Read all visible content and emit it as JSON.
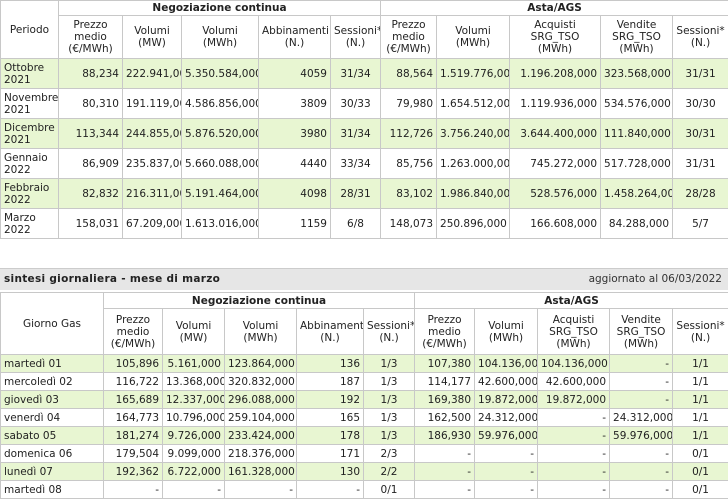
{
  "monthly": {
    "group_headers": [
      "Negoziazione continua",
      "Asta/AGS"
    ],
    "columns": [
      "Periodo",
      "Prezzo\nmedio\n(€/MWh)",
      "Volumi\n(MW)",
      "Volumi\n(MWh)",
      "Abbinamenti\n(N.)",
      "Sessioni*\n(N.)",
      "Prezzo\nmedio\n(€/MWh)",
      "Volumi\n(MWh)",
      "Acquisti\nSRG_TSO\n(MWh)",
      "Vendite\nSRG_TSO\n(MWh)",
      "Sessioni*\n(N.)"
    ],
    "rows": [
      [
        "Ottobre\n2021",
        "88,234",
        "222.941,000",
        "5.350.584,000",
        "4059",
        "31/34",
        "88,564",
        "1.519.776,000",
        "1.196.208,000",
        "323.568,000",
        "31/31"
      ],
      [
        "Novembre\n2021",
        "80,310",
        "191.119,000",
        "4.586.856,000",
        "3809",
        "30/33",
        "79,980",
        "1.654.512,000",
        "1.119.936,000",
        "534.576,000",
        "30/30"
      ],
      [
        "Dicembre\n2021",
        "113,344",
        "244.855,000",
        "5.876.520,000",
        "3980",
        "31/34",
        "112,726",
        "3.756.240,000",
        "3.644.400,000",
        "111.840,000",
        "30/31"
      ],
      [
        "Gennaio\n2022",
        "86,909",
        "235.837,000",
        "5.660.088,000",
        "4440",
        "33/34",
        "85,756",
        "1.263.000,000",
        "745.272,000",
        "517.728,000",
        "31/31"
      ],
      [
        "Febbraio\n2022",
        "82,832",
        "216.311,000",
        "5.191.464,000",
        "4098",
        "28/31",
        "83,102",
        "1.986.840,000",
        "528.576,000",
        "1.458.264,000",
        "28/28"
      ],
      [
        "Marzo\n2022",
        "158,031",
        "67.209,000",
        "1.613.016,000",
        "1159",
        "6/8",
        "148,073",
        "250.896,000",
        "166.608,000",
        "84.288,000",
        "5/7"
      ]
    ]
  },
  "section": {
    "title": "sintesi giornaliera - mese di marzo",
    "updated": "aggiornato al 06/03/2022"
  },
  "daily": {
    "group_headers": [
      "Negoziazione continua",
      "Asta/AGS"
    ],
    "columns": [
      "Giorno Gas",
      "Prezzo\nmedio\n(€/MWh)",
      "Volumi\n(MW)",
      "Volumi\n(MWh)",
      "Abbinamenti\n(N.)",
      "Sessioni*\n(N.)",
      "Prezzo\nmedio\n(€/MWh)",
      "Volumi\n(MWh)",
      "Acquisti\nSRG_TSO\n(MWh)",
      "Vendite\nSRG_TSO\n(MWh)",
      "Sessioni*\n(N.)"
    ],
    "rows": [
      [
        "martedì 01",
        "105,896",
        "5.161,000",
        "123.864,000",
        "136",
        "1/3",
        "107,380",
        "104.136,000",
        "104.136,000",
        "-",
        "1/1"
      ],
      [
        "mercoledì 02",
        "116,722",
        "13.368,000",
        "320.832,000",
        "187",
        "1/3",
        "114,177",
        "42.600,000",
        "42.600,000",
        "-",
        "1/1"
      ],
      [
        "giovedì 03",
        "165,689",
        "12.337,000",
        "296.088,000",
        "192",
        "1/3",
        "169,380",
        "19.872,000",
        "19.872,000",
        "-",
        "1/1"
      ],
      [
        "venerdì 04",
        "164,773",
        "10.796,000",
        "259.104,000",
        "165",
        "1/3",
        "162,500",
        "24.312,000",
        "-",
        "24.312,000",
        "1/1"
      ],
      [
        "sabato 05",
        "181,274",
        "9.726,000",
        "233.424,000",
        "178",
        "1/3",
        "186,930",
        "59.976,000",
        "-",
        "59.976,000",
        "1/1"
      ],
      [
        "domenica 06",
        "179,504",
        "9.099,000",
        "218.376,000",
        "171",
        "2/3",
        "-",
        "-",
        "-",
        "-",
        "0/1"
      ],
      [
        "lunedì 07",
        "192,362",
        "6.722,000",
        "161.328,000",
        "130",
        "2/2",
        "-",
        "-",
        "-",
        "-",
        "0/1"
      ],
      [
        "martedì 08",
        "-",
        "-",
        "-",
        "-",
        "0/1",
        "-",
        "-",
        "-",
        "-",
        "0/1"
      ]
    ]
  }
}
